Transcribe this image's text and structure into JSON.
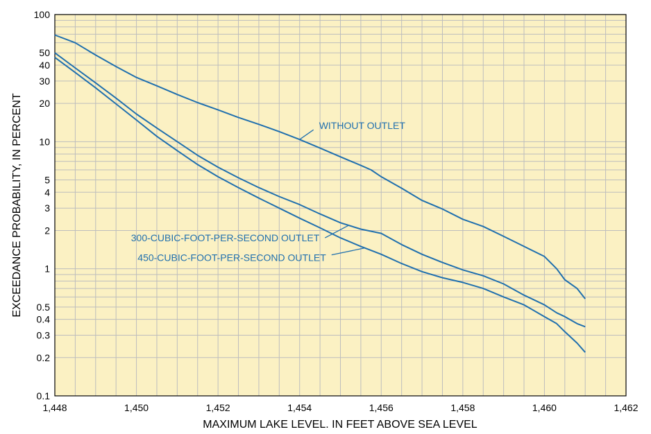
{
  "chart_data": {
    "type": "line",
    "title": "",
    "xlabel": "MAXIMUM LAKE LEVEL. IN FEET ABOVE SEA LEVEL",
    "ylabel": "EXCEEDANCE PROBABILITY, IN PERCENT",
    "x_scale": "linear",
    "y_scale": "log",
    "xlim": [
      1448,
      1462
    ],
    "ylim": [
      0.1,
      100
    ],
    "x_ticks": [
      "1,448",
      "1,450",
      "1,452",
      "1,454",
      "1,456",
      "1,458",
      "1,460",
      "1,462"
    ],
    "y_ticks": [
      "0.1",
      "0.2",
      "0.3",
      "0.4",
      "0.5",
      "1",
      "2",
      "3",
      "4",
      "5",
      "10",
      "20",
      "30",
      "40",
      "50",
      "100"
    ],
    "grid": true,
    "background_color": "#fbf1c3",
    "grid_color": "#bdbdbd",
    "line_color": "#1f6fae",
    "series": [
      {
        "name": "WITHOUT OUTLET",
        "points": [
          [
            1448.0,
            69
          ],
          [
            1448.5,
            60
          ],
          [
            1449.0,
            48
          ],
          [
            1449.5,
            39
          ],
          [
            1450.0,
            32
          ],
          [
            1450.5,
            27.5
          ],
          [
            1451.0,
            23.5
          ],
          [
            1451.5,
            20.3
          ],
          [
            1452.0,
            17.8
          ],
          [
            1452.5,
            15.5
          ],
          [
            1453.0,
            13.7
          ],
          [
            1453.5,
            12.0
          ],
          [
            1454.0,
            10.4
          ],
          [
            1454.5,
            8.9
          ],
          [
            1455.0,
            7.6
          ],
          [
            1455.5,
            6.5
          ],
          [
            1455.75,
            6.0
          ],
          [
            1456.0,
            5.3
          ],
          [
            1456.5,
            4.3
          ],
          [
            1457.0,
            3.45
          ],
          [
            1457.5,
            2.95
          ],
          [
            1458.0,
            2.45
          ],
          [
            1458.5,
            2.15
          ],
          [
            1459.0,
            1.8
          ],
          [
            1459.5,
            1.5
          ],
          [
            1460.0,
            1.25
          ],
          [
            1460.3,
            1.0
          ],
          [
            1460.5,
            0.82
          ],
          [
            1460.8,
            0.7
          ],
          [
            1461.0,
            0.58
          ]
        ]
      },
      {
        "name": "300-CUBIC-FOOT-PER-SECOND OUTLET",
        "points": [
          [
            1448.0,
            50
          ],
          [
            1448.5,
            38
          ],
          [
            1449.0,
            29
          ],
          [
            1449.5,
            22
          ],
          [
            1450.0,
            16.5
          ],
          [
            1450.5,
            12.8
          ],
          [
            1451.0,
            10.0
          ],
          [
            1451.5,
            7.8
          ],
          [
            1452.0,
            6.3
          ],
          [
            1452.5,
            5.2
          ],
          [
            1453.0,
            4.35
          ],
          [
            1453.5,
            3.7
          ],
          [
            1454.0,
            3.2
          ],
          [
            1454.5,
            2.7
          ],
          [
            1455.0,
            2.3
          ],
          [
            1455.5,
            2.05
          ],
          [
            1456.0,
            1.9
          ],
          [
            1456.5,
            1.55
          ],
          [
            1457.0,
            1.3
          ],
          [
            1457.5,
            1.12
          ],
          [
            1458.0,
            0.98
          ],
          [
            1458.5,
            0.88
          ],
          [
            1459.0,
            0.76
          ],
          [
            1459.5,
            0.62
          ],
          [
            1460.0,
            0.52
          ],
          [
            1460.3,
            0.45
          ],
          [
            1460.5,
            0.42
          ],
          [
            1460.8,
            0.37
          ],
          [
            1461.0,
            0.35
          ]
        ]
      },
      {
        "name": "450-CUBIC-FOOT-PER-SECOND OUTLET",
        "points": [
          [
            1448.0,
            46
          ],
          [
            1448.5,
            35
          ],
          [
            1449.0,
            26.5
          ],
          [
            1449.5,
            19.8
          ],
          [
            1450.0,
            14.8
          ],
          [
            1450.5,
            11.0
          ],
          [
            1451.0,
            8.5
          ],
          [
            1451.5,
            6.6
          ],
          [
            1452.0,
            5.3
          ],
          [
            1452.5,
            4.35
          ],
          [
            1453.0,
            3.6
          ],
          [
            1453.5,
            3.0
          ],
          [
            1454.0,
            2.5
          ],
          [
            1454.5,
            2.1
          ],
          [
            1455.0,
            1.75
          ],
          [
            1455.5,
            1.5
          ],
          [
            1456.0,
            1.3
          ],
          [
            1456.5,
            1.1
          ],
          [
            1457.0,
            0.95
          ],
          [
            1457.5,
            0.85
          ],
          [
            1458.0,
            0.78
          ],
          [
            1458.5,
            0.7
          ],
          [
            1459.0,
            0.6
          ],
          [
            1459.5,
            0.52
          ],
          [
            1460.0,
            0.42
          ],
          [
            1460.3,
            0.37
          ],
          [
            1460.5,
            0.32
          ],
          [
            1460.8,
            0.26
          ],
          [
            1461.0,
            0.22
          ]
        ]
      }
    ],
    "annotations": [
      {
        "text": "WITHOUT OUTLET",
        "series": 0,
        "at_x": 1454.0
      },
      {
        "text": "300-CUBIC-FOOT-PER-SECOND OUTLET",
        "series": 1,
        "at_x": 1455.2
      },
      {
        "text": "450-CUBIC-FOOT-PER-SECOND OUTLET",
        "series": 2,
        "at_x": 1455.6
      }
    ]
  }
}
